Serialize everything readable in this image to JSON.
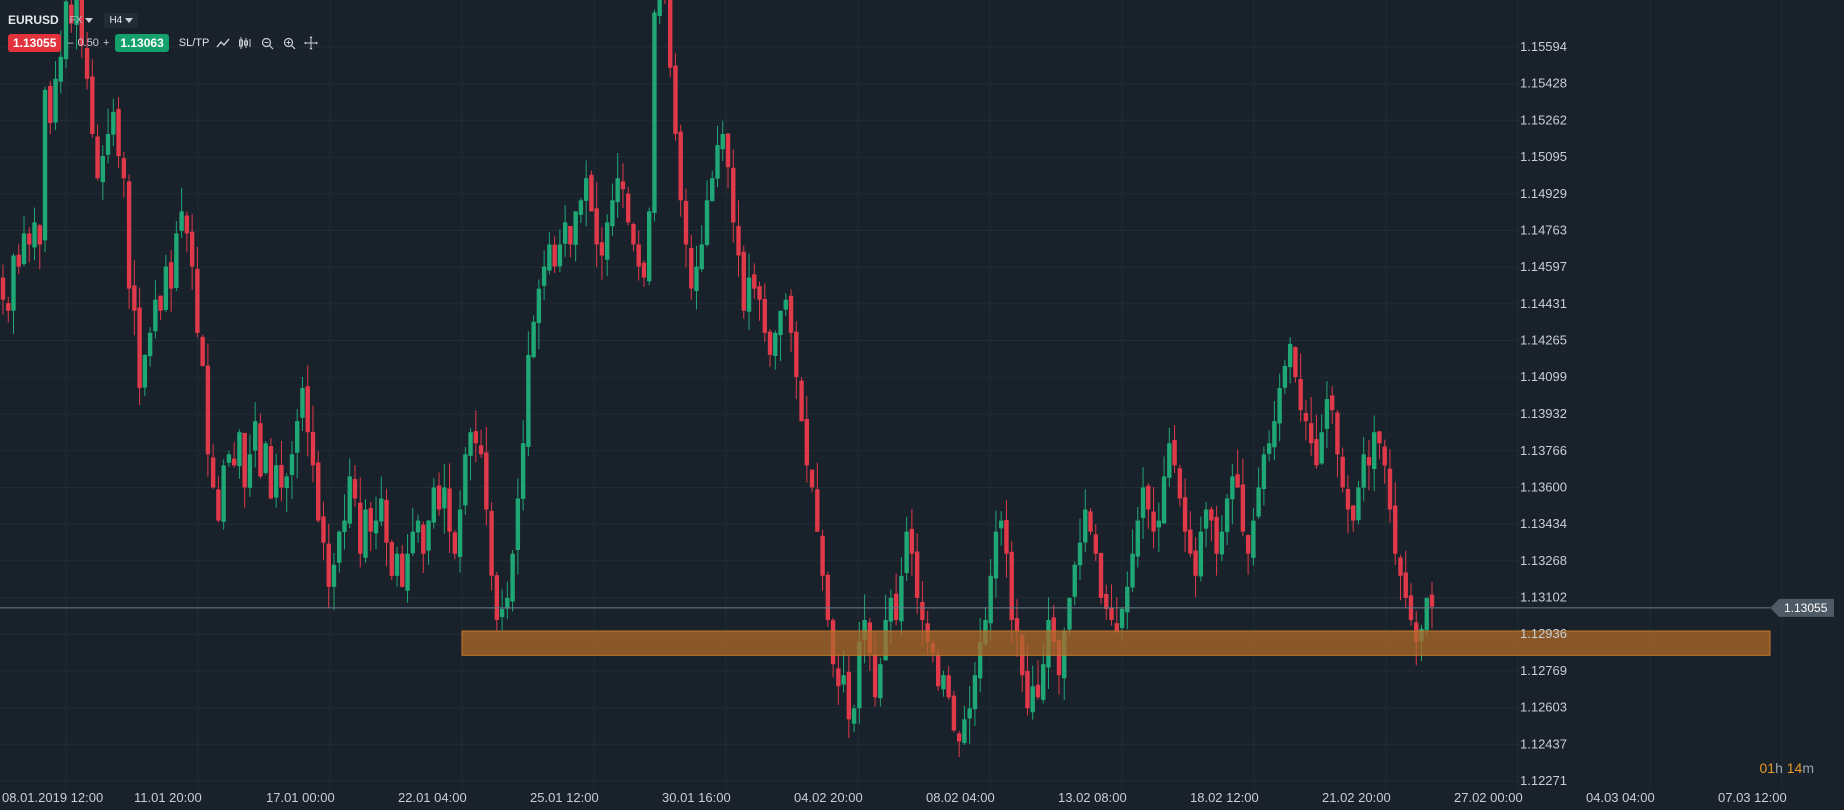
{
  "toolbar": {
    "symbol": "EURUSD",
    "market": "FX",
    "timeframe": "H4",
    "bid": "1.13055",
    "spread_minus": "–",
    "spread": "0.50",
    "spread_plus": "+",
    "ask": "1.13063",
    "sltp": "SL/TP",
    "tools": [
      "line-chart-icon",
      "candles-icon",
      "zoom-out-icon",
      "zoom-in-icon",
      "crosshair-icon"
    ]
  },
  "timer": {
    "hours": "01",
    "h": "h",
    "minutes": "14",
    "m": "m"
  },
  "colors": {
    "up": "#1fa775",
    "down": "#e0394a",
    "zone": "#b06a2a",
    "background": "#19212a",
    "grid": "#222c35"
  },
  "chart_data": {
    "type": "candlestick",
    "ylim": [
      1.1223,
      1.1568
    ],
    "price_ticks": [
      "1.15594",
      "1.15428",
      "1.15262",
      "1.15095",
      "1.14929",
      "1.14763",
      "1.14597",
      "1.14431",
      "1.14265",
      "1.14099",
      "1.13932",
      "1.13766",
      "1.13600",
      "1.13434",
      "1.13268",
      "1.13102",
      "1.12936",
      "1.12769",
      "1.12603",
      "1.12437",
      "1.12271"
    ],
    "time_labels": [
      "08.01.2019 12:00",
      "11.01 20:00",
      "17.01 00:00",
      "22.01 04:00",
      "25.01 12:00",
      "30.01 16:00",
      "04.02 20:00",
      "08.02 04:00",
      "13.02 08:00",
      "18.02 12:00",
      "21.02 20:00",
      "27.02 00:00",
      "04.03 04:00",
      "07.03 12:00"
    ],
    "current_price": "1.13055",
    "support_zone": [
      1.1284,
      1.1295
    ],
    "closes": [
      1.1445,
      1.144,
      1.1465,
      1.146,
      1.1475,
      1.147,
      1.148,
      1.147,
      1.154,
      1.1525,
      1.1545,
      1.1555,
      1.158,
      1.157,
      1.159,
      1.156,
      1.1545,
      1.152,
      1.15,
      1.151,
      1.152,
      1.153,
      1.151,
      1.15,
      1.145,
      1.144,
      1.1405,
      1.142,
      1.143,
      1.1445,
      1.144,
      1.146,
      1.145,
      1.1475,
      1.1485,
      1.1475,
      1.146,
      1.143,
      1.1415,
      1.1375,
      1.136,
      1.1345,
      1.137,
      1.1375,
      1.137,
      1.1385,
      1.136,
      1.1375,
      1.139,
      1.1365,
      1.138,
      1.1355,
      1.137,
      1.136,
      1.1365,
      1.1375,
      1.139,
      1.1405,
      1.1385,
      1.137,
      1.1345,
      1.1335,
      1.1315,
      1.1325,
      1.134,
      1.1345,
      1.1365,
      1.1355,
      1.133,
      1.135,
      1.134,
      1.1345,
      1.1355,
      1.1335,
      1.132,
      1.133,
      1.1315,
      1.133,
      1.134,
      1.1345,
      1.133,
      1.1345,
      1.136,
      1.135,
      1.136,
      1.134,
      1.133,
      1.135,
      1.1375,
      1.1385,
      1.138,
      1.1375,
      1.135,
      1.132,
      1.13,
      1.1305,
      1.131,
      1.133,
      1.1355,
      1.138,
      1.142,
      1.1435,
      1.145,
      1.146,
      1.147,
      1.146,
      1.147,
      1.148,
      1.147,
      1.1485,
      1.149,
      1.15,
      1.1485,
      1.147,
      1.1465,
      1.148,
      1.149,
      1.15,
      1.1495,
      1.148,
      1.147,
      1.146,
      1.1455,
      1.1485,
      1.1575,
      1.159,
      1.1585,
      1.155,
      1.152,
      1.149,
      1.147,
      1.145,
      1.146,
      1.147,
      1.149,
      1.15,
      1.1515,
      1.152,
      1.1505,
      1.148,
      1.1465,
      1.144,
      1.1455,
      1.145,
      1.1445,
      1.143,
      1.142,
      1.143,
      1.144,
      1.1445,
      1.143,
      1.141,
      1.139,
      1.137,
      1.136,
      1.134,
      1.132,
      1.13,
      1.128,
      1.127,
      1.1275,
      1.1255,
      1.126,
      1.129,
      1.13,
      1.1285,
      1.1265,
      1.128,
      1.13,
      1.131,
      1.13,
      1.132,
      1.134,
      1.133,
      1.131,
      1.13,
      1.129,
      1.1285,
      1.127,
      1.1275,
      1.1265,
      1.125,
      1.1245,
      1.1255,
      1.126,
      1.1275,
      1.129,
      1.13,
      1.132,
      1.134,
      1.1345,
      1.133,
      1.13,
      1.1295,
      1.1275,
      1.126,
      1.127,
      1.1265,
      1.128,
      1.13,
      1.129,
      1.1275,
      1.1295,
      1.131,
      1.1325,
      1.1335,
      1.135,
      1.134,
      1.133,
      1.131,
      1.1305,
      1.13,
      1.1295,
      1.1305,
      1.1315,
      1.133,
      1.1345,
      1.136,
      1.135,
      1.134,
      1.1345,
      1.1365,
      1.138,
      1.137,
      1.1355,
      1.134,
      1.133,
      1.132,
      1.134,
      1.135,
      1.1345,
      1.133,
      1.134,
      1.1355,
      1.1365,
      1.136,
      1.134,
      1.133,
      1.1345,
      1.136,
      1.1375,
      1.138,
      1.139,
      1.1405,
      1.1415,
      1.1425,
      1.141,
      1.1395,
      1.139,
      1.138,
      1.137,
      1.1385,
      1.14,
      1.1395,
      1.1375,
      1.136,
      1.135,
      1.1345,
      1.136,
      1.1375,
      1.137,
      1.1385,
      1.138,
      1.137,
      1.135,
      1.133,
      1.132,
      1.131,
      1.13,
      1.129,
      1.1296,
      1.131,
      1.1306
    ]
  }
}
